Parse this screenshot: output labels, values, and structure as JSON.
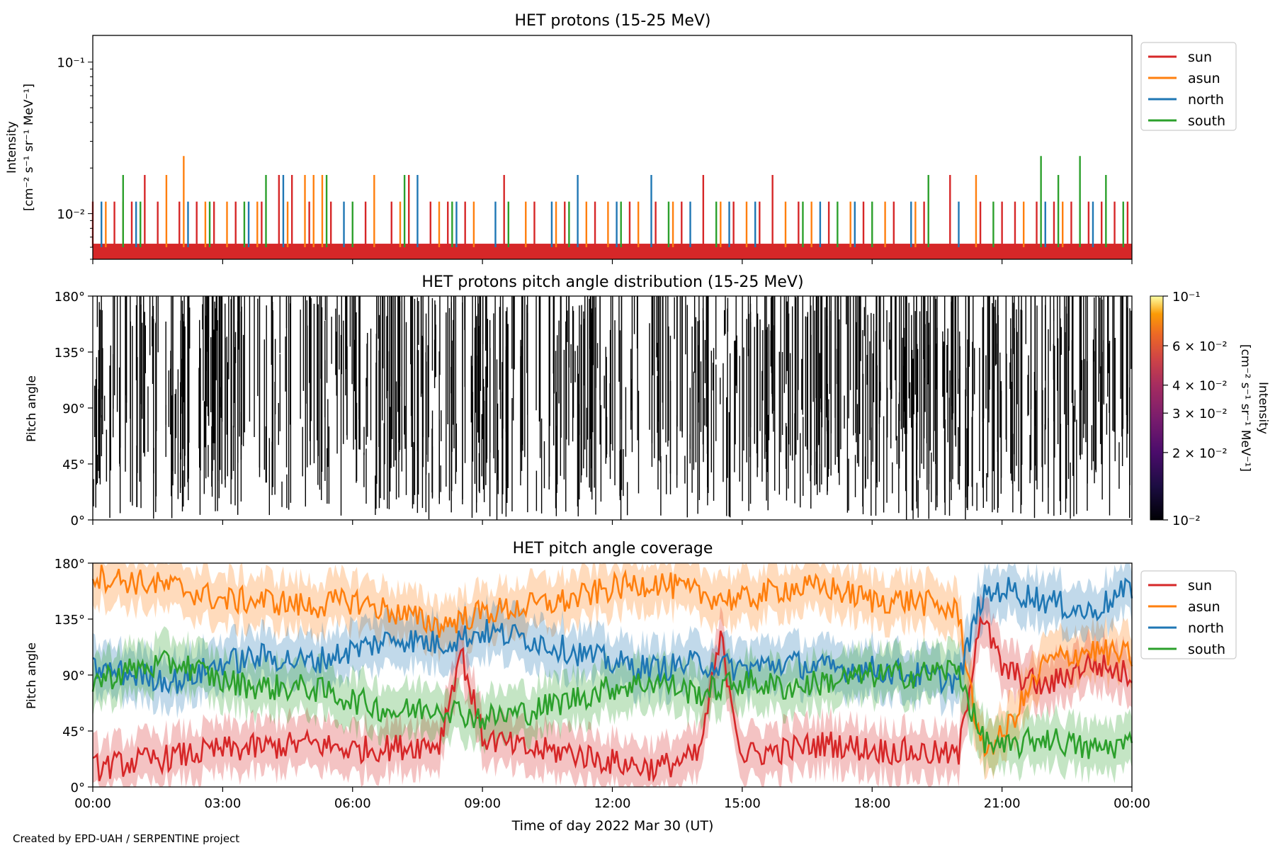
{
  "figure": {
    "credit": "Created by EPD-UAH / SERPENTINE project",
    "time_axis": {
      "label": "Time of day 2022 Mar 30 (UT)",
      "ticks": [
        "00:00",
        "03:00",
        "06:00",
        "09:00",
        "12:00",
        "15:00",
        "18:00",
        "21:00",
        "00:00"
      ],
      "range_hours": [
        0,
        24
      ]
    },
    "colors": {
      "sun": "#d62728",
      "asun": "#ff7f0e",
      "north": "#1f77b4",
      "south": "#2ca02c"
    }
  },
  "chart_data": [
    {
      "type": "line",
      "title": "HET protons (15-25 MeV)",
      "ylabel_line1": "Intensity",
      "ylabel_line2": "[cm⁻² s⁻¹ sr⁻¹ MeV⁻¹]",
      "yscale": "log",
      "ylim": [
        0.005,
        0.15
      ],
      "ytick_labels": [
        "10⁻¹",
        "10⁻²"
      ],
      "legend": {
        "placement": "outside-top-right",
        "entries": [
          "sun",
          "asun",
          "north",
          "south"
        ]
      },
      "baseline_level": 0.006,
      "count_levels": [
        0.012,
        0.018,
        0.024
      ],
      "series": [
        {
          "name": "sun",
          "color": "#d62728",
          "spikes": [
            [
              0.0,
              0.012
            ],
            [
              0.5,
              0.012
            ],
            [
              0.9,
              0.012
            ],
            [
              1.2,
              0.018
            ],
            [
              1.5,
              0.012
            ],
            [
              2.0,
              0.012
            ],
            [
              2.4,
              0.012
            ],
            [
              2.8,
              0.012
            ],
            [
              3.3,
              0.012
            ],
            [
              3.9,
              0.012
            ],
            [
              4.3,
              0.018
            ],
            [
              4.6,
              0.018
            ],
            [
              5.0,
              0.012
            ],
            [
              5.5,
              0.012
            ],
            [
              6.3,
              0.012
            ],
            [
              6.9,
              0.012
            ],
            [
              7.3,
              0.018
            ],
            [
              7.8,
              0.012
            ],
            [
              8.2,
              0.012
            ],
            [
              8.6,
              0.012
            ],
            [
              9.5,
              0.018
            ],
            [
              10.2,
              0.012
            ],
            [
              10.9,
              0.012
            ],
            [
              11.6,
              0.012
            ],
            [
              12.4,
              0.012
            ],
            [
              13.0,
              0.012
            ],
            [
              13.6,
              0.012
            ],
            [
              14.1,
              0.018
            ],
            [
              14.8,
              0.012
            ],
            [
              15.4,
              0.012
            ],
            [
              15.7,
              0.018
            ],
            [
              16.3,
              0.012
            ],
            [
              17.0,
              0.012
            ],
            [
              17.8,
              0.012
            ],
            [
              18.5,
              0.012
            ],
            [
              19.2,
              0.012
            ],
            [
              19.8,
              0.018
            ],
            [
              20.5,
              0.012
            ],
            [
              21.0,
              0.012
            ],
            [
              21.3,
              0.012
            ],
            [
              21.8,
              0.012
            ],
            [
              22.2,
              0.012
            ],
            [
              22.6,
              0.012
            ],
            [
              23.0,
              0.012
            ],
            [
              23.3,
              0.012
            ],
            [
              23.6,
              0.012
            ],
            [
              23.9,
              0.012
            ]
          ]
        },
        {
          "name": "asun",
          "color": "#ff7f0e",
          "spikes": [
            [
              0.3,
              0.012
            ],
            [
              0.7,
              0.012
            ],
            [
              1.7,
              0.018
            ],
            [
              2.1,
              0.024
            ],
            [
              2.6,
              0.012
            ],
            [
              3.1,
              0.012
            ],
            [
              3.8,
              0.012
            ],
            [
              4.5,
              0.012
            ],
            [
              4.9,
              0.018
            ],
            [
              5.1,
              0.018
            ],
            [
              5.3,
              0.018
            ],
            [
              6.5,
              0.018
            ],
            [
              7.1,
              0.012
            ],
            [
              8.0,
              0.012
            ],
            [
              8.8,
              0.012
            ],
            [
              10.0,
              0.012
            ],
            [
              10.7,
              0.012
            ],
            [
              11.4,
              0.012
            ],
            [
              11.9,
              0.012
            ],
            [
              12.6,
              0.012
            ],
            [
              13.4,
              0.012
            ],
            [
              14.5,
              0.012
            ],
            [
              15.1,
              0.012
            ],
            [
              16.0,
              0.012
            ],
            [
              16.6,
              0.012
            ],
            [
              17.5,
              0.012
            ],
            [
              18.3,
              0.012
            ],
            [
              19.0,
              0.012
            ],
            [
              20.4,
              0.018
            ],
            [
              21.5,
              0.012
            ],
            [
              22.4,
              0.012
            ]
          ]
        },
        {
          "name": "north",
          "color": "#1f77b4",
          "spikes": [
            [
              0.2,
              0.012
            ],
            [
              1.0,
              0.012
            ],
            [
              2.2,
              0.012
            ],
            [
              3.6,
              0.012
            ],
            [
              4.4,
              0.018
            ],
            [
              5.8,
              0.012
            ],
            [
              7.5,
              0.018
            ],
            [
              8.4,
              0.012
            ],
            [
              9.3,
              0.012
            ],
            [
              10.6,
              0.012
            ],
            [
              11.2,
              0.018
            ],
            [
              12.1,
              0.012
            ],
            [
              12.9,
              0.018
            ],
            [
              13.8,
              0.012
            ],
            [
              14.7,
              0.012
            ],
            [
              15.3,
              0.012
            ],
            [
              16.8,
              0.012
            ],
            [
              17.6,
              0.012
            ],
            [
              18.9,
              0.012
            ],
            [
              20.0,
              0.012
            ],
            [
              22.0,
              0.012
            ],
            [
              23.1,
              0.012
            ]
          ]
        },
        {
          "name": "south",
          "color": "#2ca02c",
          "spikes": [
            [
              0.7,
              0.018
            ],
            [
              1.1,
              0.012
            ],
            [
              2.7,
              0.012
            ],
            [
              3.5,
              0.012
            ],
            [
              4.0,
              0.018
            ],
            [
              5.4,
              0.018
            ],
            [
              6.0,
              0.012
            ],
            [
              7.2,
              0.018
            ],
            [
              8.3,
              0.012
            ],
            [
              9.6,
              0.012
            ],
            [
              11.0,
              0.012
            ],
            [
              12.2,
              0.012
            ],
            [
              13.3,
              0.012
            ],
            [
              14.4,
              0.012
            ],
            [
              16.4,
              0.012
            ],
            [
              17.2,
              0.012
            ],
            [
              18.0,
              0.012
            ],
            [
              19.3,
              0.018
            ],
            [
              20.8,
              0.012
            ],
            [
              21.9,
              0.024
            ],
            [
              22.3,
              0.018
            ],
            [
              22.8,
              0.024
            ],
            [
              23.4,
              0.018
            ],
            [
              23.8,
              0.012
            ]
          ]
        }
      ]
    },
    {
      "type": "heatmap",
      "title": "HET protons pitch angle distribution (15-25 MeV)",
      "ylabel": "Pitch angle",
      "ylim": [
        0,
        180
      ],
      "ytick_labels": [
        "0°",
        "45°",
        "90°",
        "135°",
        "180°"
      ],
      "colorbar": {
        "scale": "log",
        "range": [
          0.01,
          0.1
        ],
        "label_line1": "Intensity",
        "label_line2": "[cm⁻² s⁻¹ sr⁻¹ MeV⁻¹]",
        "tick_labels": [
          "10⁻¹",
          "6 × 10⁻²",
          "4 × 10⁻²",
          "3 × 10⁻²",
          "2 × 10⁻²",
          "10⁻²"
        ],
        "tick_values": [
          0.1,
          0.06,
          0.04,
          0.03,
          0.02,
          0.01
        ],
        "colormap": "inferno"
      }
    },
    {
      "type": "line",
      "title": "HET pitch angle coverage",
      "ylabel": "Pitch angle",
      "ylim": [
        0,
        180
      ],
      "ytick_labels": [
        "0°",
        "45°",
        "90°",
        "135°",
        "180°"
      ],
      "legend": {
        "placement": "outside-top-right",
        "entries": [
          "sun",
          "asun",
          "north",
          "south"
        ]
      },
      "series": [
        {
          "name": "sun",
          "color": "#d62728",
          "x": [
            0,
            1,
            2,
            3,
            4,
            5,
            6,
            7,
            8,
            8.5,
            9,
            10,
            11,
            12,
            13,
            14,
            14.5,
            15,
            16,
            17,
            18,
            19,
            20,
            20.5,
            21,
            22,
            23,
            24
          ],
          "y": [
            15,
            20,
            25,
            30,
            32,
            35,
            30,
            32,
            35,
            110,
            40,
            30,
            28,
            20,
            15,
            25,
            120,
            25,
            30,
            35,
            30,
            28,
            25,
            140,
            95,
            80,
            100,
            90
          ]
        },
        {
          "name": "asun",
          "color": "#ff7f0e",
          "x": [
            0,
            1,
            2,
            3,
            4,
            5,
            6,
            7,
            8,
            9,
            10,
            11,
            12,
            13,
            14,
            15,
            16,
            17,
            18,
            19,
            20,
            20.5,
            21,
            22,
            23,
            24
          ],
          "y": [
            170,
            165,
            160,
            150,
            150,
            145,
            150,
            140,
            130,
            140,
            145,
            150,
            160,
            165,
            155,
            150,
            160,
            160,
            150,
            150,
            140,
            30,
            40,
            100,
            110,
            105
          ]
        },
        {
          "name": "north",
          "color": "#1f77b4",
          "x": [
            0,
            1,
            2,
            3,
            4,
            5,
            6,
            7,
            8,
            9,
            10,
            11,
            12,
            13,
            14,
            15,
            16,
            17,
            18,
            19,
            20,
            20.5,
            21,
            22,
            23,
            24
          ],
          "y": [
            95,
            90,
            85,
            100,
            105,
            100,
            110,
            120,
            115,
            125,
            120,
            110,
            100,
            95,
            100,
            95,
            100,
            95,
            95,
            90,
            85,
            150,
            160,
            150,
            140,
            160
          ]
        },
        {
          "name": "south",
          "color": "#2ca02c",
          "x": [
            0,
            1,
            2,
            3,
            4,
            5,
            6,
            7,
            8,
            9,
            10,
            11,
            12,
            13,
            14,
            15,
            16,
            17,
            18,
            19,
            20,
            20.5,
            21,
            22,
            23,
            24
          ],
          "y": [
            85,
            95,
            100,
            85,
            80,
            80,
            70,
            60,
            65,
            55,
            60,
            70,
            80,
            85,
            75,
            85,
            80,
            85,
            90,
            90,
            95,
            40,
            30,
            40,
            30,
            35
          ]
        }
      ]
    }
  ]
}
